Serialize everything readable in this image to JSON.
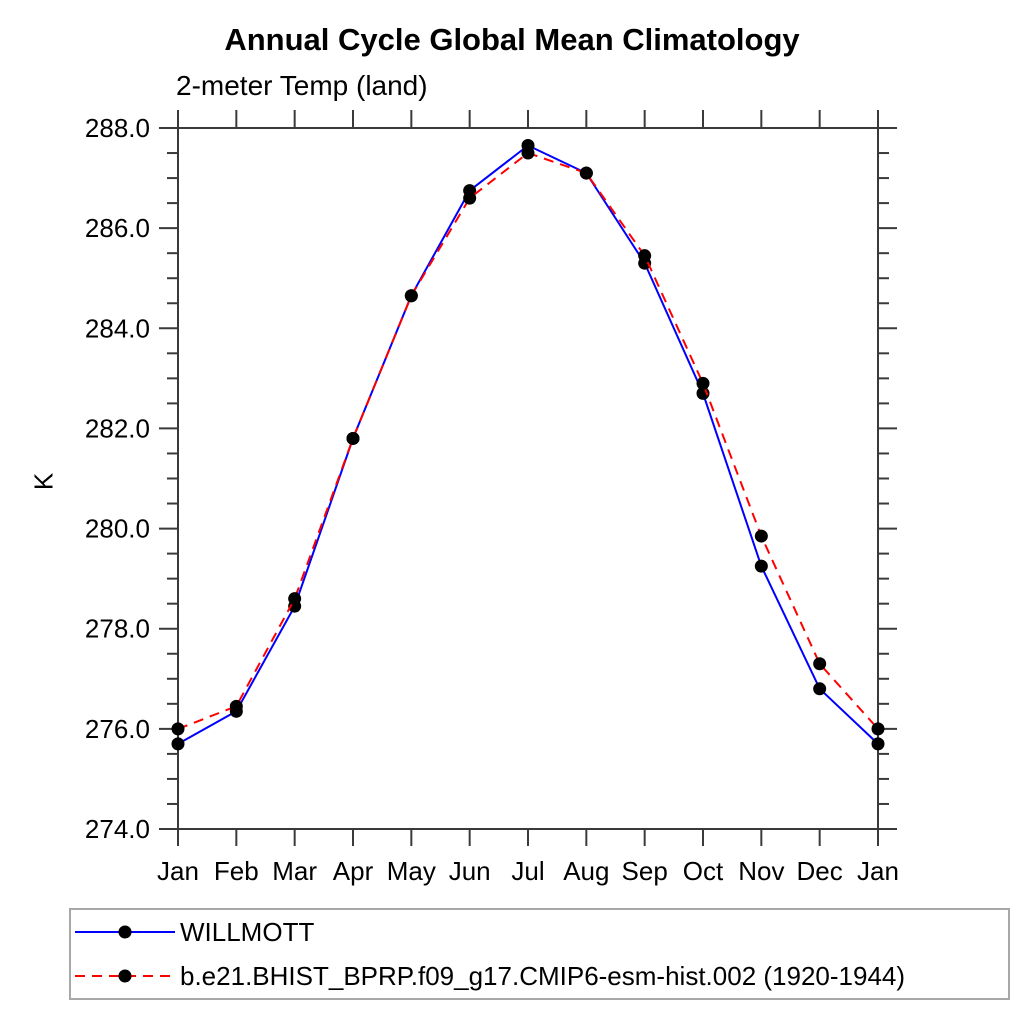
{
  "title": "Annual Cycle Global Mean Climatology",
  "subtitle": "2-meter Temp (land)",
  "ylabel": "K",
  "colors": {
    "obs_line": "#0000ff",
    "model_line": "#ff0000",
    "marker": "#000000",
    "axis": "#3a3a3a",
    "legend_border": "#a8a8a8"
  },
  "chart_data": {
    "type": "line",
    "categories": [
      "Jan",
      "Feb",
      "Mar",
      "Apr",
      "May",
      "Jun",
      "Jul",
      "Aug",
      "Sep",
      "Oct",
      "Nov",
      "Dec",
      "Jan"
    ],
    "xlabel": "",
    "ylabel": "K",
    "ylim": [
      274.0,
      288.0
    ],
    "ytick_major_step": 2.0,
    "ytick_minor_step": 0.5,
    "ytick_labels": [
      "274.0",
      "276.0",
      "278.0",
      "280.0",
      "282.0",
      "284.0",
      "286.0",
      "288.0"
    ],
    "grid": false,
    "legend_position": "bottom-left",
    "series": [
      {
        "name": "WILLMOTT",
        "line_color": "#0000ff",
        "line_style": "solid",
        "marker_color": "#000000",
        "values": [
          275.7,
          276.35,
          278.45,
          281.8,
          284.65,
          286.75,
          287.65,
          287.1,
          285.3,
          282.7,
          279.25,
          276.8,
          275.7
        ]
      },
      {
        "name": "b.e21.BHIST_BPRP.f09_g17.CMIP6-esm-hist.002 (1920-1944)",
        "line_color": "#ff0000",
        "line_style": "dashed",
        "marker_color": "#000000",
        "values": [
          276.0,
          276.45,
          278.6,
          281.8,
          284.65,
          286.6,
          287.5,
          287.1,
          285.45,
          282.9,
          279.85,
          277.3,
          276.0
        ]
      }
    ]
  }
}
